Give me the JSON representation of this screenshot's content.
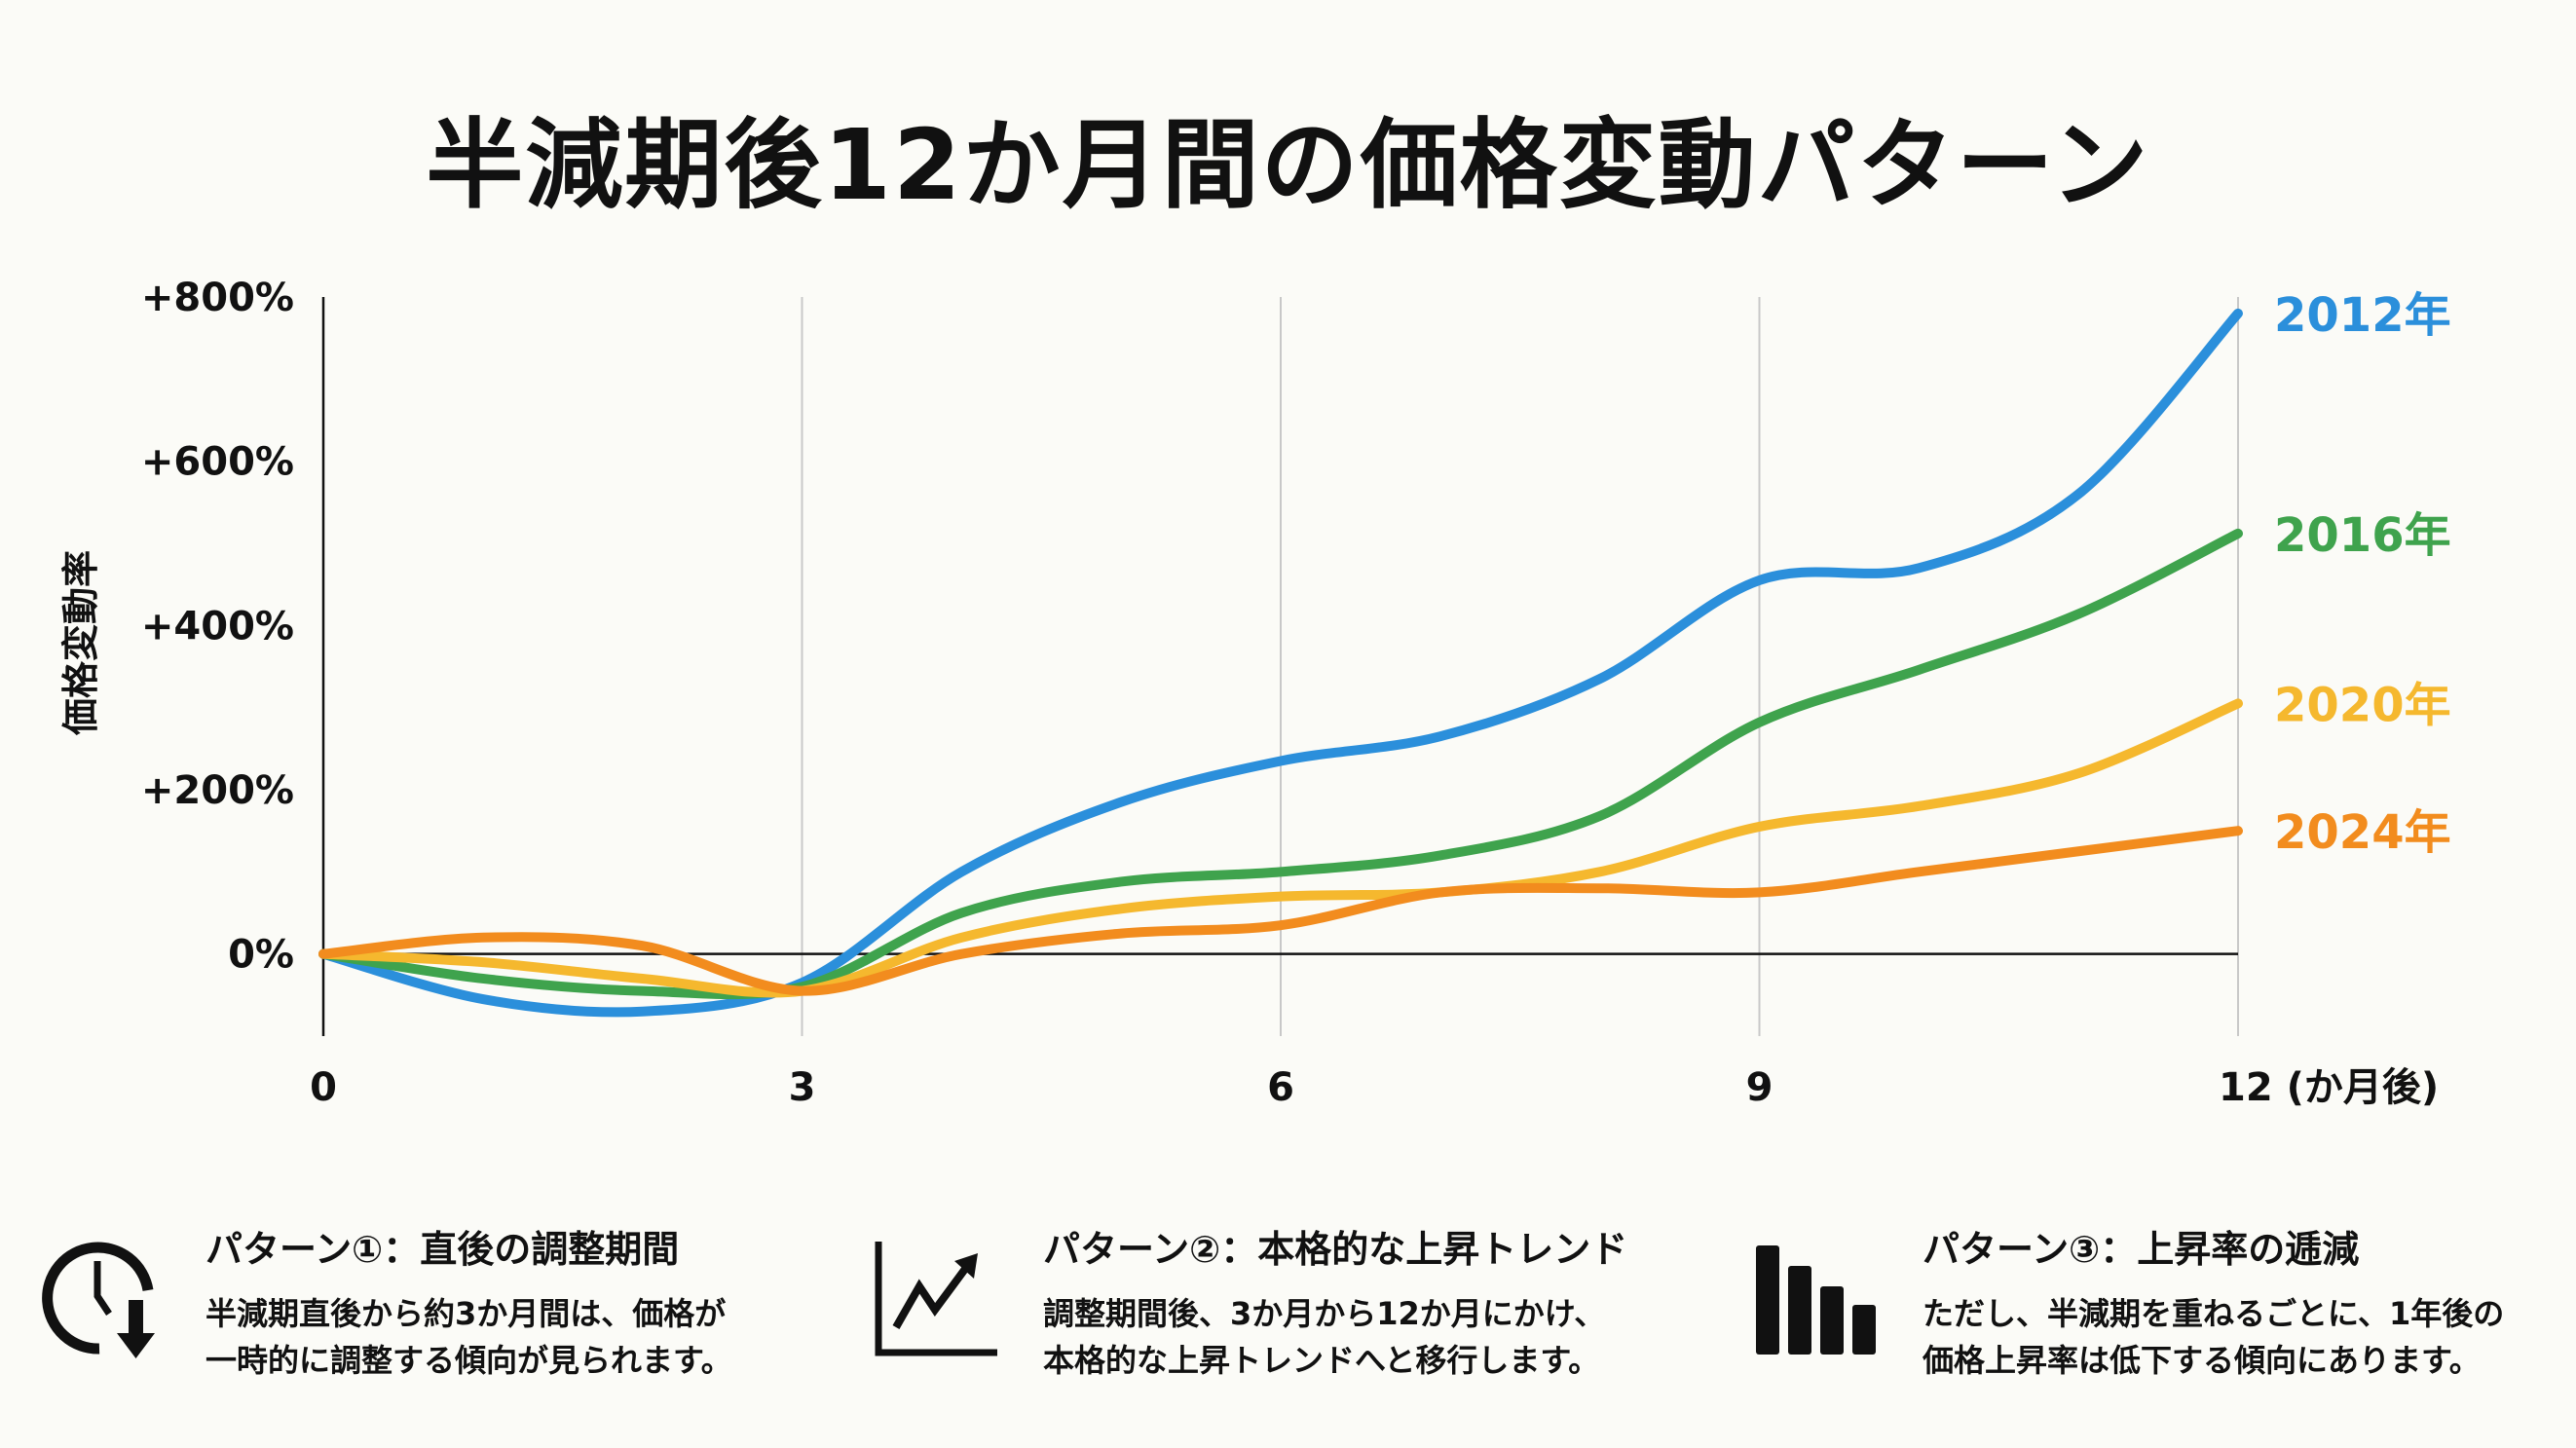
{
  "title": "半減期後12か月間の価格変動パターン",
  "chart_data": {
    "type": "line",
    "title": "半減期後12か月間の価格変動パターン",
    "ylabel": "価格変動率",
    "xlabel": "(か月後)",
    "x": [
      0,
      1,
      2,
      3,
      4,
      5,
      6,
      7,
      8,
      9,
      10,
      11,
      12
    ],
    "xticks": [
      0,
      3,
      6,
      9,
      12
    ],
    "xtick_labels": [
      "0",
      "3",
      "6",
      "9",
      "12 (か月後)"
    ],
    "yticks": [
      0,
      200,
      400,
      600,
      800
    ],
    "ytick_labels": [
      "0%",
      "+200%",
      "+400%",
      "+600%",
      "+800%"
    ],
    "xlim": [
      0,
      12
    ],
    "ylim": [
      -100,
      800
    ],
    "grid": "vertical",
    "legend": "right (line-end labels)",
    "series": [
      {
        "name": "2012年",
        "color": "#2b8fdb",
        "values": [
          0,
          -55,
          -70,
          -35,
          100,
          185,
          235,
          265,
          335,
          455,
          470,
          560,
          780
        ]
      },
      {
        "name": "2016年",
        "color": "#3fa34d",
        "values": [
          0,
          -30,
          -45,
          -40,
          50,
          88,
          100,
          120,
          168,
          282,
          346,
          414,
          512
        ]
      },
      {
        "name": "2020年",
        "color": "#f5b82e",
        "values": [
          0,
          -10,
          -30,
          -45,
          20,
          55,
          70,
          75,
          100,
          155,
          180,
          220,
          305
        ]
      },
      {
        "name": "2024年",
        "color": "#f28c1e",
        "values": [
          0,
          20,
          10,
          -45,
          0,
          25,
          35,
          75,
          80,
          75,
          100,
          125,
          150
        ]
      }
    ]
  },
  "panels": [
    {
      "icon": "clock-down-arrow-icon",
      "heading": "パターン①：直後の調整期間",
      "lines": [
        "半減期直後から約3か月間は、価格が",
        "一時的に調整する傾向が見られます。"
      ]
    },
    {
      "icon": "trend-up-chart-icon",
      "heading": "パターン②：本格的な上昇トレンド",
      "lines": [
        "調整期間後、3か月から12か月にかけ、",
        "本格的な上昇トレンドへと移行します。"
      ]
    },
    {
      "icon": "decreasing-bars-icon",
      "heading": "パターン③：上昇率の逓減",
      "lines": [
        "ただし、半減期を重ねるごとに、1年後の",
        "価格上昇率は低下する傾向にあります。"
      ]
    }
  ]
}
